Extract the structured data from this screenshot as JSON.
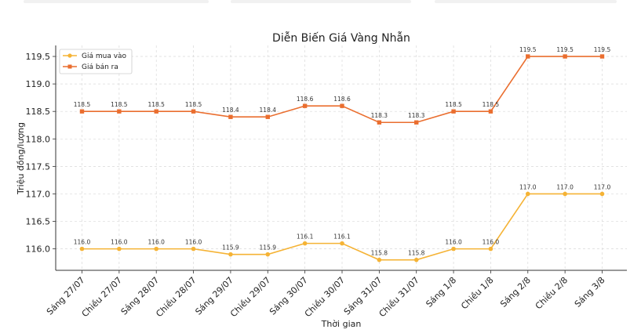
{
  "chart_data": {
    "type": "line",
    "title": "Diễn Biến Giá Vàng Nhẫn",
    "xlabel": "Thời gian",
    "ylabel": "Triệu đồng/lượng",
    "categories": [
      "Sáng 27/07",
      "Chiều 27/07",
      "Sáng 28/07",
      "Chiều 28/07",
      "Sáng 29/07",
      "Chiều 29/07",
      "Sáng 30/07",
      "Chiều 30/07",
      "Sáng 31/07",
      "Chiều 31/07",
      "Sáng 1/8",
      "Chiều 1/8",
      "Sáng 2/8",
      "Chiều 2/8",
      "Sáng 3/8"
    ],
    "series": [
      {
        "name": "Giá mua vào",
        "color": "#f5b335",
        "marker": "circle",
        "values": [
          116.0,
          116.0,
          116.0,
          116.0,
          115.9,
          115.9,
          116.1,
          116.1,
          115.8,
          115.8,
          116.0,
          116.0,
          117.0,
          117.0,
          117.0
        ],
        "labels": [
          "116.0",
          "116.0",
          "116.0",
          "116.0",
          "115.9",
          "115.9",
          "116.1",
          "116.1",
          "115.8",
          "115.8",
          "116.0",
          "116.0",
          "117.0",
          "117.0",
          "117.0"
        ]
      },
      {
        "name": "Giá bán ra",
        "color": "#ea6e2f",
        "marker": "square",
        "values": [
          118.5,
          118.5,
          118.5,
          118.5,
          118.4,
          118.4,
          118.6,
          118.6,
          118.3,
          118.3,
          118.5,
          118.5,
          119.5,
          119.5,
          119.5
        ],
        "labels": [
          "118.5",
          "118.5",
          "118.5",
          "118.5",
          "118.4",
          "118.4",
          "118.6",
          "118.6",
          "118.3",
          "118.3",
          "118.5",
          "118.5",
          "119.5",
          "119.5",
          "119.5"
        ]
      }
    ],
    "yticks": [
      116.0,
      116.5,
      117.0,
      117.5,
      118.0,
      118.5,
      119.0,
      119.5
    ],
    "ytick_labels": [
      "116.0",
      "116.5",
      "117.0",
      "117.5",
      "118.0",
      "118.5",
      "119.0",
      "119.5"
    ],
    "ylim": [
      115.61,
      119.7
    ],
    "grid": true,
    "legend_position": "top-left"
  }
}
